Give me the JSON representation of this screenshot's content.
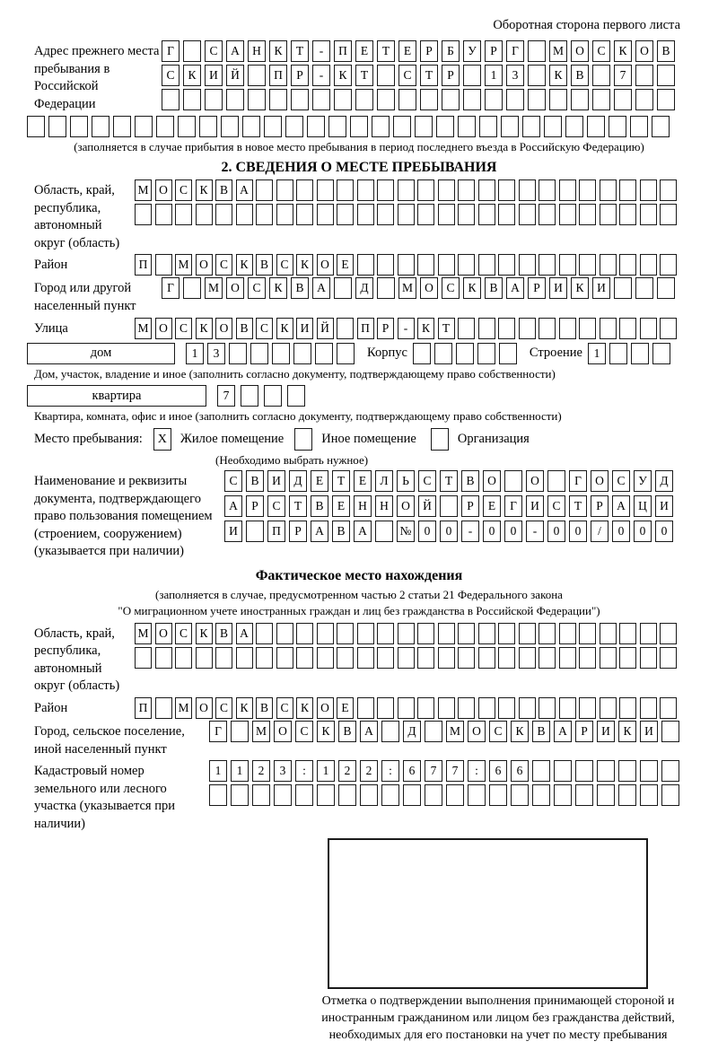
{
  "header": {
    "right_note": "Оборотная сторона первого листа"
  },
  "prev_address": {
    "label": "Адрес прежнего места пребывания в Российской Федерации",
    "row1": [
      "Г",
      "",
      "С",
      "А",
      "Н",
      "К",
      "Т",
      "-",
      "П",
      "Е",
      "Т",
      "Е",
      "Р",
      "Б",
      "У",
      "Р",
      "Г",
      "",
      "М",
      "О",
      "С",
      "К",
      "О",
      "В"
    ],
    "row2": [
      "С",
      "К",
      "И",
      "Й",
      "",
      "П",
      "Р",
      "-",
      "К",
      "Т",
      "",
      "С",
      "Т",
      "Р",
      "",
      "1",
      "3",
      "",
      "К",
      "В",
      "",
      "7",
      "",
      ""
    ],
    "row3": 24,
    "row4": 30,
    "note": "(заполняется в случае прибытия в новое место пребывания в период последнего въезда в Российскую Федерацию)"
  },
  "section2": {
    "title": "2. СВЕДЕНИЯ О МЕСТЕ ПРЕБЫВАНИЯ",
    "region": {
      "label": "Область, край, республика, автономный округ (область)",
      "row1": [
        "М",
        "О",
        "С",
        "К",
        "В",
        "А",
        "",
        "",
        "",
        "",
        "",
        "",
        "",
        "",
        "",
        "",
        "",
        "",
        "",
        "",
        "",
        "",
        "",
        "",
        "",
        "",
        ""
      ],
      "row2": 27
    },
    "district": {
      "label": "Район",
      "row": [
        "П",
        "",
        "М",
        "О",
        "С",
        "К",
        "В",
        "С",
        "К",
        "О",
        "Е",
        "",
        "",
        "",
        "",
        "",
        "",
        "",
        "",
        "",
        "",
        "",
        "",
        "",
        "",
        "",
        ""
      ]
    },
    "city": {
      "label": "Город или другой населенный пункт",
      "row": [
        "Г",
        "",
        "М",
        "О",
        "С",
        "К",
        "В",
        "А",
        "",
        "Д",
        "",
        "М",
        "О",
        "С",
        "К",
        "В",
        "А",
        "Р",
        "И",
        "К",
        "И",
        "",
        "",
        ""
      ]
    },
    "street": {
      "label": "Улица",
      "row": [
        "М",
        "О",
        "С",
        "К",
        "О",
        "В",
        "С",
        "К",
        "И",
        "Й",
        "",
        "П",
        "Р",
        "-",
        "К",
        "Т",
        "",
        "",
        "",
        "",
        "",
        "",
        "",
        "",
        "",
        "",
        ""
      ]
    },
    "house": {
      "box_label": "дом",
      "cells": [
        "1",
        "3",
        "",
        "",
        "",
        "",
        "",
        ""
      ],
      "korpus_label": "Корпус",
      "korpus_cells": 5,
      "stroenie_label": "Строение",
      "stroenie_cells": [
        "1",
        "",
        "",
        ""
      ]
    },
    "house_note": "Дом, участок, владение и иное (заполнить согласно документу, подтверждающему право собственности)",
    "apartment": {
      "box_label": "квартира",
      "cells": [
        "7",
        "",
        "",
        ""
      ]
    },
    "apartment_note": "Квартира, комната, офис и иное (заполнить согласно документу, подтверждающему право собственности)",
    "stay_type": {
      "label": "Место пребывания:",
      "options": [
        {
          "mark": "X",
          "label": "Жилое помещение"
        },
        {
          "mark": "",
          "label": "Иное помещение"
        },
        {
          "mark": "",
          "label": "Организация"
        }
      ],
      "note": "(Необходимо выбрать нужное)"
    },
    "document": {
      "label": "Наименование и реквизиты документа, подтверждающего право пользования помещением (строением, сооружением) (указывается при наличии)",
      "row1": [
        "С",
        "В",
        "И",
        "Д",
        "Е",
        "Т",
        "Е",
        "Л",
        "Ь",
        "С",
        "Т",
        "В",
        "О",
        "",
        "О",
        "",
        "Г",
        "О",
        "С",
        "У",
        "Д"
      ],
      "row2": [
        "А",
        "Р",
        "С",
        "Т",
        "В",
        "Е",
        "Н",
        "Н",
        "О",
        "Й",
        "",
        "Р",
        "Е",
        "Г",
        "И",
        "С",
        "Т",
        "Р",
        "А",
        "Ц",
        "И"
      ],
      "row3": [
        "И",
        "",
        "П",
        "Р",
        "А",
        "В",
        "А",
        "",
        "№",
        "0",
        "0",
        "-",
        "0",
        "0",
        "-",
        "0",
        "0",
        "/",
        "0",
        "0",
        "0"
      ]
    }
  },
  "actual_location": {
    "title": "Фактическое место нахождения",
    "note_line1": "(заполняется в случае, предусмотренном частью 2 статьи 21 Федерального закона",
    "note_line2": "\"О миграционном учете иностранных граждан и лиц без гражданства в Российской Федерации\")",
    "region": {
      "label": "Область, край, республика, автономный округ (область)",
      "row1": [
        "М",
        "О",
        "С",
        "К",
        "В",
        "А",
        "",
        "",
        "",
        "",
        "",
        "",
        "",
        "",
        "",
        "",
        "",
        "",
        "",
        "",
        "",
        "",
        "",
        "",
        "",
        "",
        ""
      ],
      "row2": 27
    },
    "district": {
      "label": "Район",
      "row": [
        "П",
        "",
        "М",
        "О",
        "С",
        "К",
        "В",
        "С",
        "К",
        "О",
        "Е",
        "",
        "",
        "",
        "",
        "",
        "",
        "",
        "",
        "",
        "",
        "",
        "",
        "",
        "",
        "",
        ""
      ]
    },
    "city": {
      "label": "Город, сельское поселение, иной населенный пункт",
      "row": [
        "Г",
        "",
        "М",
        "О",
        "С",
        "К",
        "В",
        "А",
        "",
        "Д",
        "",
        "М",
        "О",
        "С",
        "К",
        "В",
        "А",
        "Р",
        "И",
        "К",
        "И",
        ""
      ]
    },
    "cadastral": {
      "label": "Кадастровый номер земельного или лесного участка (указывается при наличии)",
      "row1": [
        "1",
        "1",
        "2",
        "3",
        ":",
        "1",
        "2",
        "2",
        ":",
        "6",
        "7",
        "7",
        ":",
        "6",
        "6",
        "",
        "",
        "",
        "",
        "",
        "",
        ""
      ],
      "row2": 22
    },
    "mark_caption": "Отметка о подтверждении выполнения принимающей стороной и иностранным гражданином или лицом без гражданства действий, необходимых для его постановки на учет по месту пребывания"
  }
}
